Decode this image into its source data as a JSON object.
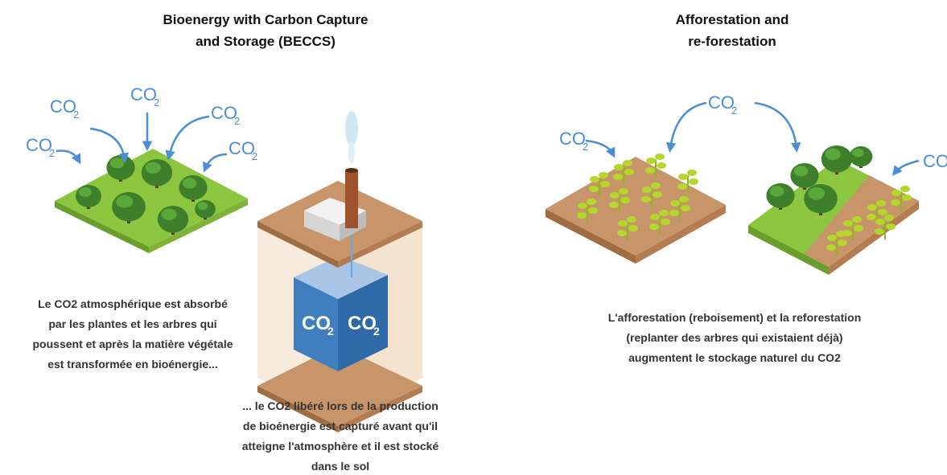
{
  "panels": [
    {
      "title": [
        "Bioenergy with Carbon Capture",
        "and Storage (BECCS)"
      ],
      "captions": [
        [
          "Le CO2 atmosphérique est absorbé",
          "par les plantes et les arbres qui",
          "poussent et après la matière végétale",
          "est transformée en bioénergie..."
        ],
        [
          "... le CO2 libéré lors de la production",
          "de bioénergie est capturé avant qu'il",
          "atteigne l'atmosphère et il est stocké",
          "dans le sol"
        ]
      ]
    },
    {
      "title": [
        "Afforestation and",
        "re-forestation"
      ],
      "captions": [
        [
          "L'afforestation (reboisement) et la reforestation",
          "(replanter des arbres qui existaient déjà)",
          "augmentent le stockage naturel du CO2"
        ]
      ]
    }
  ],
  "co2": {
    "main": "CO",
    "sub": "2"
  }
}
